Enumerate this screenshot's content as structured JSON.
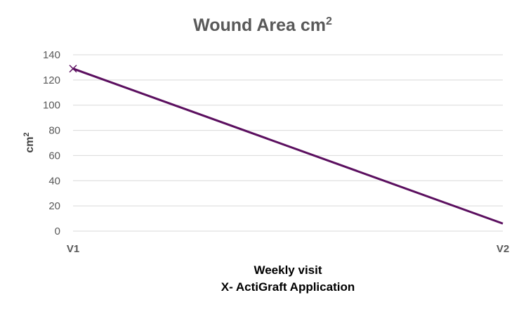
{
  "chart_data": {
    "type": "line",
    "title": "Wound Area cm",
    "title_superscript": "2",
    "categories": [
      "V1",
      "V2"
    ],
    "series": [
      {
        "values": [
          129,
          6
        ],
        "color": "#5b0f5f",
        "marker": "x",
        "marker_on": [
          true,
          false
        ]
      }
    ],
    "xlabel": "Weekly visit",
    "xlabel_line2": "X- ActiGraft Application",
    "ylabel": "cm",
    "ylabel_superscript": "2",
    "ylim": [
      0,
      140
    ],
    "yticks": [
      0,
      20,
      40,
      60,
      80,
      100,
      120,
      140
    ],
    "grid": true,
    "legend": "none"
  }
}
